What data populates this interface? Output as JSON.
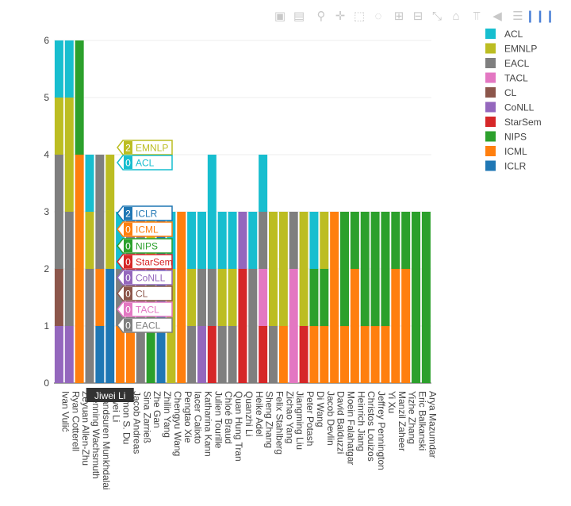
{
  "modebar": [
    {
      "name": "camera-icon",
      "glyph": "▣"
    },
    {
      "name": "save-icon",
      "glyph": "▤"
    },
    {
      "name": "zoom-icon",
      "glyph": "⚲"
    },
    {
      "name": "pan-icon",
      "glyph": "✛"
    },
    {
      "name": "box-select-icon",
      "glyph": "⬚"
    },
    {
      "name": "lasso-icon",
      "glyph": "◌"
    },
    {
      "name": "zoom-in-icon",
      "glyph": "⊞"
    },
    {
      "name": "zoom-out-icon",
      "glyph": "⊟"
    },
    {
      "name": "autoscale-icon",
      "glyph": "⤡"
    },
    {
      "name": "home-icon",
      "glyph": "⌂"
    },
    {
      "name": "spike-lines-icon",
      "glyph": "⫪"
    },
    {
      "name": "hover-closest-icon",
      "glyph": "◀"
    },
    {
      "name": "hover-compare-icon",
      "glyph": "☰"
    },
    {
      "name": "plotly-logo-icon",
      "glyph": "❙❙❙"
    }
  ],
  "chart_data": {
    "type": "bar",
    "barmode": "stack",
    "ylim": [
      0,
      6
    ],
    "yticks": [
      0,
      1,
      2,
      3,
      4,
      5,
      6
    ],
    "grid": true,
    "legend_position": "top-right",
    "categories": [
      "Ivan Vulić",
      "Ryan Cotterell",
      "Zeyuan Allen-Zhu",
      "Henning Wachsmuth",
      "Mandsuren Munkhdalai",
      "Jiwei Li",
      "Simon S. Du",
      "Jacob Andreas",
      "Sina Zarrieß",
      "Zhe Gan",
      "Zhilin Yang",
      "Chengyu Wang",
      "Pengtao Xie",
      "Iacer Calixto",
      "Katharina Kann",
      "Julien Tourille",
      "Chloé Braud",
      "Quan Hung Tran",
      "Quanzhi Li",
      "Heike Adel",
      "Sheng Zhang",
      "Felix Stahlberg",
      "Zichao Yang",
      "Jiangming Liu",
      "Peter Potash",
      "Di Wang",
      "Jacob Devlin",
      "David Balduzzi",
      "Moein Falahatgar",
      "Heinrich Jiang",
      "Christos Louizos",
      "Jeffrey Pennington",
      "Yi Xu",
      "Manzil Zaheer",
      "Yizhe Zhang",
      "Eric Balkanski",
      "Arya Mazumdar"
    ],
    "series": [
      {
        "name": "ICLR",
        "color": "#1f77b4",
        "values": [
          0,
          0,
          0,
          0,
          1,
          2,
          0,
          0,
          0,
          0,
          3,
          0,
          0,
          0,
          0,
          0,
          0,
          0,
          0,
          0,
          0,
          0,
          0,
          0,
          0,
          0,
          0,
          0,
          0,
          0,
          0,
          0,
          0,
          0,
          0,
          0,
          0
        ]
      },
      {
        "name": "ICML",
        "color": "#ff7f0e",
        "values": [
          0,
          0,
          4,
          0,
          1,
          0,
          1,
          1,
          0,
          0,
          0,
          0,
          3,
          0,
          0,
          0,
          0,
          0,
          0,
          0,
          0,
          0,
          1,
          0,
          0,
          1,
          1,
          3,
          1,
          2,
          1,
          1,
          1,
          2,
          2,
          0,
          0
        ]
      },
      {
        "name": "NIPS",
        "color": "#2ca02c",
        "values": [
          0,
          0,
          2,
          0,
          0,
          0,
          0,
          0,
          0,
          2,
          0,
          0,
          0,
          0,
          0,
          0,
          0,
          0,
          0,
          0,
          0,
          0,
          0,
          0,
          0,
          1,
          1,
          0,
          2,
          1,
          2,
          2,
          2,
          1,
          1,
          3,
          3
        ]
      },
      {
        "name": "StarSem",
        "color": "#d62728",
        "values": [
          0,
          0,
          0,
          0,
          0,
          0,
          0,
          0,
          0,
          0,
          0,
          0,
          0,
          0,
          0,
          1,
          0,
          0,
          2,
          0,
          1,
          0,
          0,
          0,
          1,
          0,
          0,
          0,
          0,
          0,
          0,
          0,
          0,
          0,
          0,
          0,
          0
        ]
      },
      {
        "name": "CoNLL",
        "color": "#9467bd",
        "values": [
          1,
          1,
          0,
          0,
          0,
          0,
          0,
          0,
          0,
          0,
          0,
          0,
          0,
          0,
          1,
          0,
          0,
          0,
          1,
          0,
          0,
          0,
          0,
          0,
          0,
          0,
          0,
          0,
          0,
          0,
          0,
          0,
          0,
          0,
          0,
          0,
          0
        ]
      },
      {
        "name": "CL",
        "color": "#8c564b",
        "values": [
          1,
          0,
          0,
          0,
          0,
          0,
          0,
          0,
          0,
          0,
          0,
          0,
          0,
          0,
          0,
          0,
          0,
          0,
          0,
          0,
          0,
          0,
          0,
          0,
          0,
          0,
          0,
          0,
          0,
          0,
          0,
          0,
          0,
          0,
          0,
          0,
          0
        ]
      },
      {
        "name": "TACL",
        "color": "#e377c2",
        "values": [
          0,
          0,
          0,
          0,
          0,
          0,
          0,
          0,
          0,
          0,
          0,
          0,
          0,
          0,
          0,
          0,
          0,
          0,
          0,
          0,
          1,
          0,
          0,
          2,
          0,
          0,
          0,
          0,
          0,
          0,
          0,
          0,
          0,
          0,
          0,
          0,
          0
        ]
      },
      {
        "name": "EACL",
        "color": "#7f7f7f",
        "values": [
          2,
          2,
          0,
          2,
          2,
          0,
          1,
          2,
          3,
          0,
          0,
          0,
          0,
          1,
          1,
          1,
          1,
          1,
          0,
          2,
          1,
          1,
          0,
          1,
          0,
          0,
          0,
          0,
          0,
          0,
          0,
          0,
          0,
          0,
          0,
          0,
          0
        ]
      },
      {
        "name": "EMNLP",
        "color": "#bcbd22",
        "values": [
          1,
          2,
          0,
          1,
          0,
          2,
          0,
          0,
          0,
          1,
          0,
          2,
          0,
          1,
          0,
          0,
          1,
          1,
          0,
          0,
          0,
          2,
          2,
          0,
          2,
          0,
          1,
          0,
          0,
          0,
          0,
          0,
          0,
          0,
          0,
          0,
          0
        ]
      },
      {
        "name": "ACL",
        "color": "#17becf",
        "values": [
          1,
          1,
          0,
          1,
          0,
          0,
          1,
          0,
          0,
          0,
          0,
          1,
          0,
          1,
          1,
          2,
          1,
          1,
          0,
          1,
          1,
          0,
          0,
          0,
          0,
          1,
          0,
          0,
          0,
          0,
          0,
          0,
          0,
          0,
          0,
          0,
          0
        ]
      }
    ],
    "hover": {
      "category_label": "Jiwei Li",
      "entries": [
        {
          "series": "EMNLP",
          "value": 2
        },
        {
          "series": "ACL",
          "value": 0
        },
        {
          "series": "ICLR",
          "value": 2
        },
        {
          "series": "ICML",
          "value": 0
        },
        {
          "series": "NIPS",
          "value": 0
        },
        {
          "series": "StarSem",
          "value": 0
        },
        {
          "series": "CoNLL",
          "value": 0
        },
        {
          "series": "CL",
          "value": 0
        },
        {
          "series": "TACL",
          "value": 0
        },
        {
          "series": "EACL",
          "value": 0
        }
      ]
    },
    "legend": [
      "ACL",
      "EMNLP",
      "EACL",
      "TACL",
      "CL",
      "CoNLL",
      "StarSem",
      "NIPS",
      "ICML",
      "ICLR"
    ]
  }
}
